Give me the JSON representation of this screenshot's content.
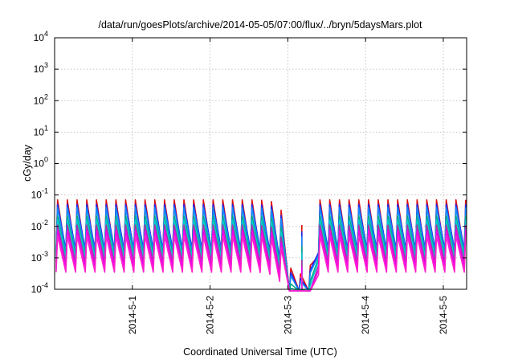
{
  "chart_data": {
    "type": "line",
    "title": "/data/run/goesPlots/archive/2014-05-05/07:00/flux/../bryn/5daysMars.plot",
    "xlabel": "Coordinated Universal Time (UTC)",
    "ylabel": "cGy/day",
    "yscale": "log",
    "ylim": [
      0.0001,
      10000
    ],
    "xlim": [
      0.0,
      5.3
    ],
    "grid": true,
    "x_ticks": [
      {
        "value": 1,
        "label": "2014-5-1"
      },
      {
        "value": 2,
        "label": "2014-5-2"
      },
      {
        "value": 3,
        "label": "2014-5-3"
      },
      {
        "value": 4,
        "label": "2014-5-4"
      },
      {
        "value": 5,
        "label": "2014-5-5"
      }
    ],
    "y_ticks": [
      {
        "value": 0.0001,
        "base": "10",
        "exp": "-4"
      },
      {
        "value": 0.001,
        "base": "10",
        "exp": "-3"
      },
      {
        "value": 0.01,
        "base": "10",
        "exp": "-2"
      },
      {
        "value": 0.1,
        "base": "10",
        "exp": "-1"
      },
      {
        "value": 1,
        "base": "10",
        "exp": "0"
      },
      {
        "value": 10,
        "base": "10",
        "exp": "1"
      },
      {
        "value": 100,
        "base": "10",
        "exp": "2"
      },
      {
        "value": 1000,
        "base": "10",
        "exp": "3"
      },
      {
        "value": 10000,
        "base": "10",
        "exp": "4"
      }
    ],
    "cycle_days": 0.125,
    "gap_day": 3.18,
    "envelope": {
      "x": [
        0.0,
        2.62,
        2.88,
        3.02,
        3.14,
        3.18,
        3.3,
        3.4,
        5.3
      ],
      "log_multiplier": [
        1.0,
        1.0,
        0.95,
        0.32,
        0.03,
        0.35,
        0.3,
        1.0,
        1.0
      ]
    },
    "series": [
      {
        "color": "#dd1111",
        "peak": 0.07,
        "trough": 0.0014
      },
      {
        "color": "#2222ee",
        "peak": 0.05,
        "trough": 0.0018
      },
      {
        "color": "#1188ff",
        "peak": 0.04,
        "trough": 0.0015
      },
      {
        "color": "#00aa88",
        "peak": 0.022,
        "trough": 0.0012
      },
      {
        "color": "#00cccc",
        "peak": 0.016,
        "trough": 0.001
      },
      {
        "color": "#aa33aa",
        "peak": 0.011,
        "trough": 0.0007
      },
      {
        "color": "#ee00ee",
        "peak": 0.0075,
        "trough": 0.0005
      },
      {
        "color": "#ff22cc",
        "peak": 0.005,
        "trough": 0.00035
      }
    ]
  }
}
